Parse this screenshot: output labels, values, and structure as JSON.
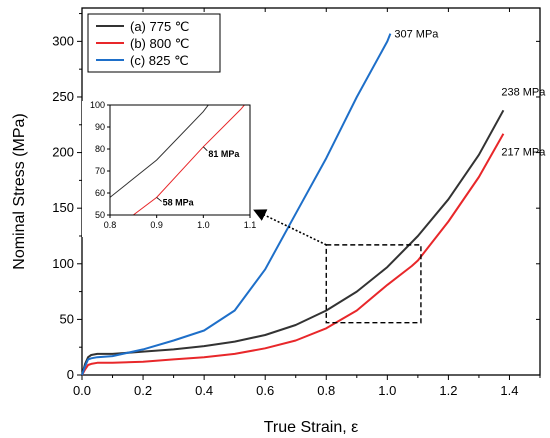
{
  "chart_data": {
    "type": "line",
    "xlabel": "True Strain, ε",
    "ylabel": "Nominal Stress (MPa)",
    "xlim": [
      0.0,
      1.5
    ],
    "ylim": [
      0,
      330
    ],
    "xticks": [
      "0.0",
      "0.2",
      "0.4",
      "0.6",
      "0.8",
      "1.0",
      "1.2",
      "1.4"
    ],
    "yticks": [
      "0",
      "50",
      "100",
      "150",
      "200",
      "250",
      "300"
    ],
    "legend_position": "top-left",
    "series": [
      {
        "name": "(a) 775 ℃",
        "color": "#333333",
        "x": [
          0.0,
          0.01,
          0.02,
          0.03,
          0.05,
          0.1,
          0.2,
          0.3,
          0.4,
          0.5,
          0.6,
          0.7,
          0.8,
          0.9,
          1.0,
          1.1,
          1.2,
          1.3,
          1.38
        ],
        "y": [
          0,
          10,
          16,
          18,
          19,
          19,
          21,
          23,
          26,
          30,
          36,
          45,
          58,
          75,
          97,
          125,
          158,
          198,
          238
        ]
      },
      {
        "name": "(b) 800 ℃",
        "color": "#e8272a",
        "x": [
          0.0,
          0.01,
          0.02,
          0.03,
          0.05,
          0.1,
          0.2,
          0.3,
          0.4,
          0.5,
          0.6,
          0.7,
          0.8,
          0.85,
          0.9,
          1.0,
          1.08,
          1.1,
          1.2,
          1.3,
          1.38
        ],
        "y": [
          0,
          5,
          9,
          10,
          11,
          11,
          12,
          14,
          16,
          19,
          24,
          31,
          42,
          50,
          58,
          81,
          98,
          103,
          138,
          178,
          217
        ]
      },
      {
        "name": "(c) 825 ℃",
        "color": "#1e6fc9",
        "x": [
          0.0,
          0.01,
          0.02,
          0.03,
          0.05,
          0.1,
          0.2,
          0.3,
          0.4,
          0.5,
          0.6,
          0.7,
          0.8,
          0.9,
          1.0,
          1.01
        ],
        "y": [
          0,
          8,
          14,
          15,
          16,
          17,
          23,
          31,
          40,
          58,
          95,
          145,
          195,
          250,
          300,
          307
        ]
      }
    ],
    "annotations": [
      {
        "text": "307 MPa",
        "x": 1.01,
        "y": 307
      },
      {
        "text": "238 MPa",
        "x": 1.38,
        "y": 238
      },
      {
        "text": "217 MPa",
        "x": 1.38,
        "y": 217
      }
    ],
    "zoom_box": {
      "x": [
        0.8,
        1.11
      ],
      "y": [
        47,
        117
      ]
    },
    "inset": {
      "xlim": [
        0.8,
        1.1
      ],
      "ylim": [
        50,
        100
      ],
      "xticks": [
        "0.8",
        "0.9",
        "1.0",
        "1.1"
      ],
      "yticks": [
        "50",
        "60",
        "70",
        "80",
        "90",
        "100"
      ],
      "annotations": [
        {
          "text": "81 MPa",
          "x": 1.0,
          "y": 81
        },
        {
          "text": "58 MPa",
          "x": 0.9,
          "y": 58
        }
      ]
    }
  }
}
